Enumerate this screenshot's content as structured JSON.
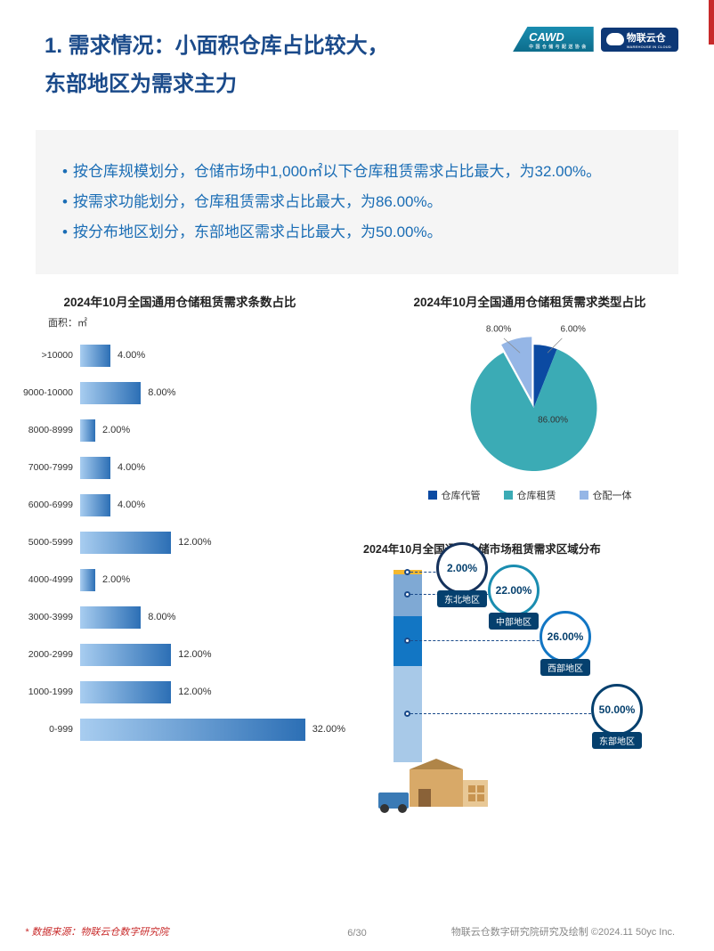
{
  "header": {
    "title_line1": "1.  需求情况：小面积仓库占比较大，",
    "title_line2": "东部地区为需求主力",
    "title_color": "#1a4a8a",
    "logo1": "CAWD",
    "logo1_sub": "中 国 仓 储 与 配 送 协 会",
    "logo2": "物联云仓",
    "logo2_sub": "WAREHOUSE IN CLOUD"
  },
  "summary": {
    "bg_color": "#f5f5f5",
    "text_color": "#1a6db5",
    "items": [
      "按仓库规模划分，仓储市场中1,000㎡以下仓库租赁需求占比最大，为32.00%。",
      "按需求功能划分，仓库租赁需求占比最大，为86.00%。",
      "按分布地区划分，东部地区需求占比最大，为50.00%。"
    ]
  },
  "bar_chart": {
    "title": "2024年10月全国通用仓储租赁需求条数占比",
    "axis_label": "面积：㎡",
    "max_value": 35,
    "bar_gradient_from": "#a8cdf0",
    "bar_gradient_to": "#2c6fb5",
    "rows": [
      {
        "label": ">10000",
        "value": 4.0,
        "display": "4.00%"
      },
      {
        "label": "9000-10000",
        "value": 8.0,
        "display": "8.00%"
      },
      {
        "label": "8000-8999",
        "value": 2.0,
        "display": "2.00%"
      },
      {
        "label": "7000-7999",
        "value": 4.0,
        "display": "4.00%"
      },
      {
        "label": "6000-6999",
        "value": 4.0,
        "display": "4.00%"
      },
      {
        "label": "5000-5999",
        "value": 12.0,
        "display": "12.00%"
      },
      {
        "label": "4000-4999",
        "value": 2.0,
        "display": "2.00%"
      },
      {
        "label": "3000-3999",
        "value": 8.0,
        "display": "8.00%"
      },
      {
        "label": "2000-2999",
        "value": 12.0,
        "display": "12.00%"
      },
      {
        "label": "1000-1999",
        "value": 12.0,
        "display": "12.00%"
      },
      {
        "label": "0-999",
        "value": 32.0,
        "display": "32.00%"
      }
    ]
  },
  "pie_chart": {
    "title": "2024年10月全国通用仓储租赁需求类型占比",
    "slices": [
      {
        "label": "仓库代管",
        "value": 6.0,
        "display": "6.00%",
        "color": "#0b4aa2"
      },
      {
        "label": "仓库租赁",
        "value": 86.0,
        "display": "86.00%",
        "color": "#3babb5"
      },
      {
        "label": "仓配一体",
        "value": 8.0,
        "display": "8.00%",
        "color": "#95b6e6"
      }
    ]
  },
  "region_chart": {
    "title": "2024年10月全国通用仓储市场租赁需求区域分布",
    "segments": [
      {
        "label": "东北地区",
        "value": 2.0,
        "display": "2.00%",
        "color": "#f5b82e",
        "border": "#15325c"
      },
      {
        "label": "中部地区",
        "value": 22.0,
        "display": "22.00%",
        "color": "#7fa9d4",
        "border": "#1a8db0"
      },
      {
        "label": "西部地区",
        "value": 26.0,
        "display": "26.00%",
        "color": "#1276c4",
        "border": "#1276c4"
      },
      {
        "label": "东部地区",
        "value": 50.0,
        "display": "50.00%",
        "color": "#a8c9e8",
        "border": "#05406e"
      }
    ]
  },
  "footer": {
    "source": "* 数据来源：物联云仓数字研究院",
    "page": "6/30",
    "credit": "物联云仓数字研究院研究及绘制    ©2024.11 50yc Inc."
  }
}
